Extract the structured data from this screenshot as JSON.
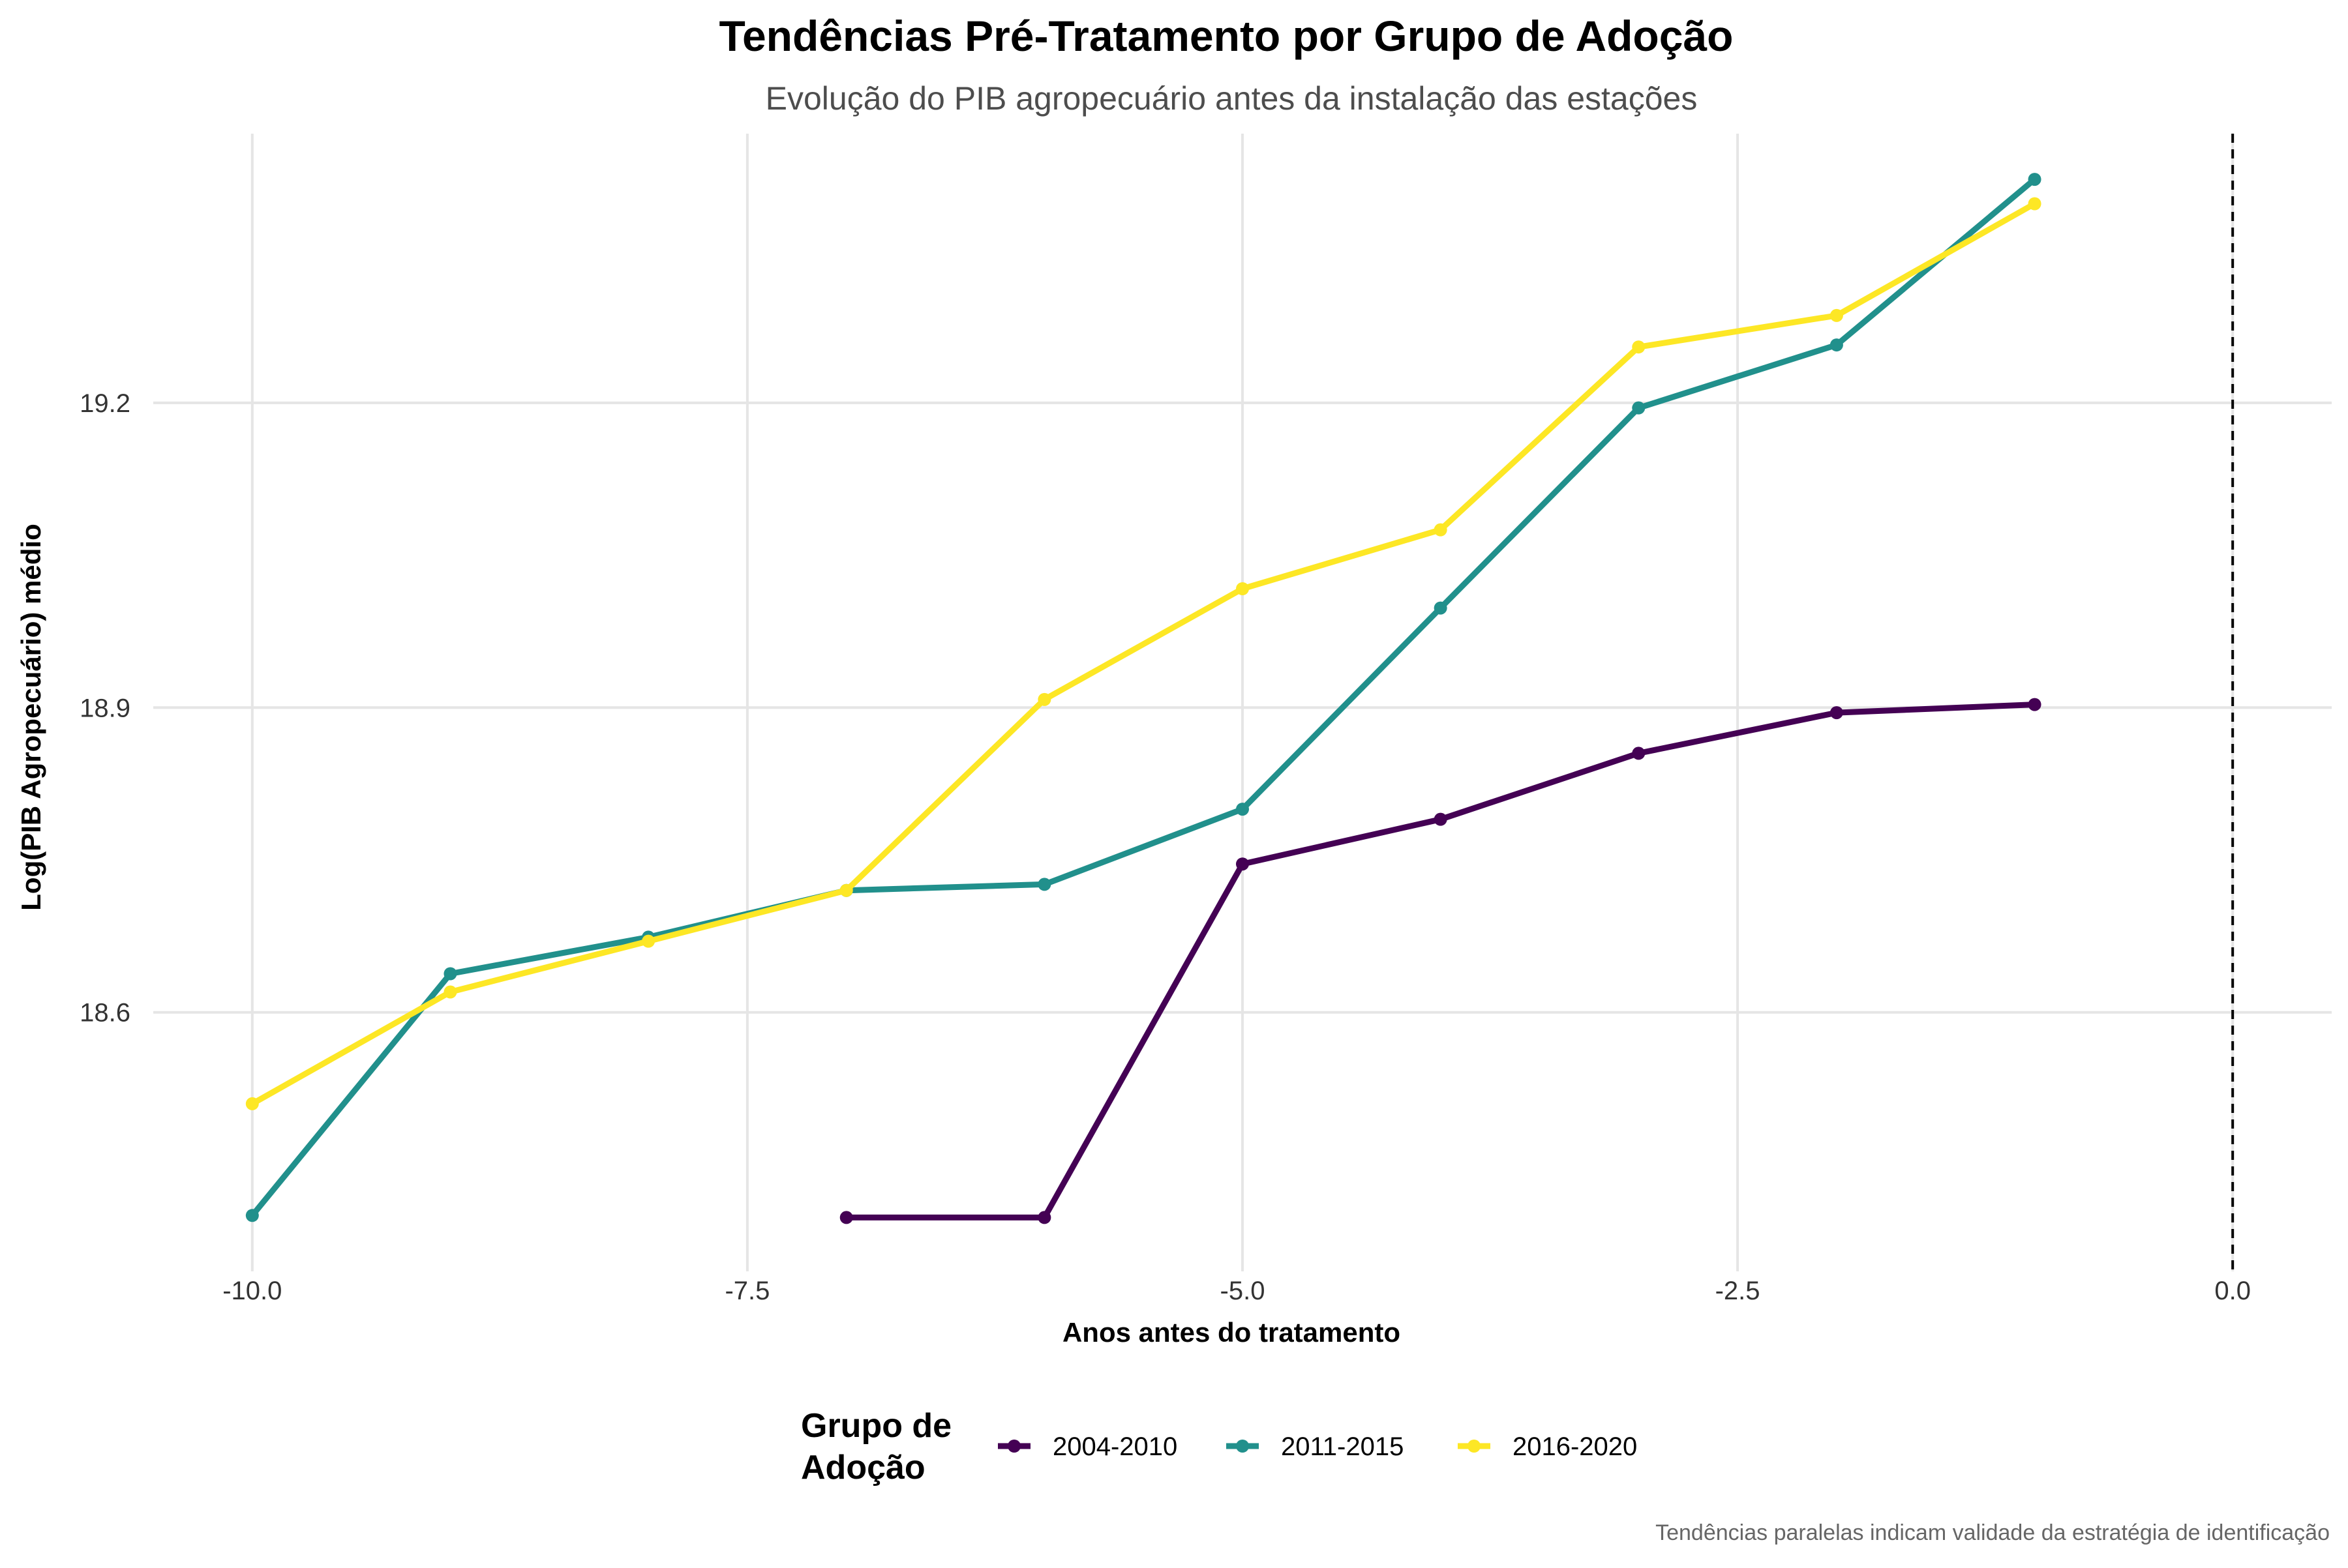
{
  "chart_data": {
    "type": "line",
    "title": "Tendências Pré-Tratamento por Grupo de Adoção",
    "subtitle": "Evolução do PIB agropecuário antes da instalação das estações",
    "xlabel": "Anos antes do tratamento",
    "ylabel": "Log(PIB Agropecuário) médio",
    "caption": "Tendências paralelas indicam validade da estratégia de identificação",
    "xlim": [
      -10.5,
      0.5
    ],
    "ylim": [
      18.345,
      19.465
    ],
    "x_ticks": [
      -10,
      -7.5,
      -5,
      -2.5,
      0
    ],
    "x_tick_labels": [
      "-10.0",
      "-7.5",
      "-5.0",
      "-2.5",
      "0.0"
    ],
    "y_ticks": [
      18.6,
      18.9,
      19.2
    ],
    "y_tick_labels": [
      "18.6",
      "18.9",
      "19.2"
    ],
    "vline": {
      "x": 0,
      "style": "dashed",
      "color": "#000000"
    },
    "grid": true,
    "legend": {
      "title": "Grupo de Adoção",
      "title_lines": [
        "Grupo de",
        "Adoção"
      ],
      "position": "bottom"
    },
    "series": [
      {
        "name": "2004-2010",
        "color": "#440154",
        "x": [
          -7,
          -6,
          -5,
          -4,
          -3,
          -2,
          -1
        ],
        "y": [
          18.398,
          18.398,
          18.746,
          18.79,
          18.855,
          18.895,
          18.903
        ]
      },
      {
        "name": "2011-2015",
        "color": "#21908C",
        "x": [
          -10,
          -9,
          -8,
          -7,
          -6,
          -5,
          -4,
          -3,
          -2,
          -1
        ],
        "y": [
          18.4,
          18.638,
          18.674,
          18.72,
          18.726,
          18.8,
          18.998,
          19.195,
          19.257,
          19.42
        ]
      },
      {
        "name": "2016-2020",
        "color": "#FDE725",
        "x": [
          -10,
          -9,
          -8,
          -7,
          -6,
          -5,
          -4,
          -3,
          -2,
          -1
        ],
        "y": [
          18.51,
          18.62,
          18.67,
          18.72,
          18.908,
          19.017,
          19.075,
          19.255,
          19.286,
          19.396
        ]
      }
    ]
  }
}
